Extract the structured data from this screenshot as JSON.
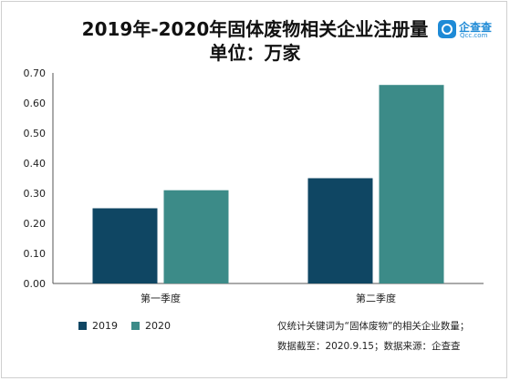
{
  "title": "2019年-2020年固体废物相关企业注册量",
  "subtitle": "单位：万家",
  "logo": {
    "name": "企查查",
    "sub": "Qcc.com"
  },
  "chart_data": {
    "type": "bar",
    "categories": [
      "第一季度",
      "第二季度"
    ],
    "series": [
      {
        "name": "2019",
        "color": "#0f4663",
        "values": [
          0.25,
          0.35
        ]
      },
      {
        "name": "2020",
        "color": "#3c8b88",
        "values": [
          0.31,
          0.66
        ]
      }
    ],
    "ylim": [
      0,
      0.7
    ],
    "yticks": [
      "0.00",
      "0.10",
      "0.20",
      "0.30",
      "0.40",
      "0.50",
      "0.60",
      "0.70"
    ],
    "grid": false,
    "legend": "bottom-left"
  },
  "notes": [
    "仅统计关键词为“固体废物”的相关企业数量；",
    "数据截至：2020.9.15；数据来源：企查查"
  ]
}
